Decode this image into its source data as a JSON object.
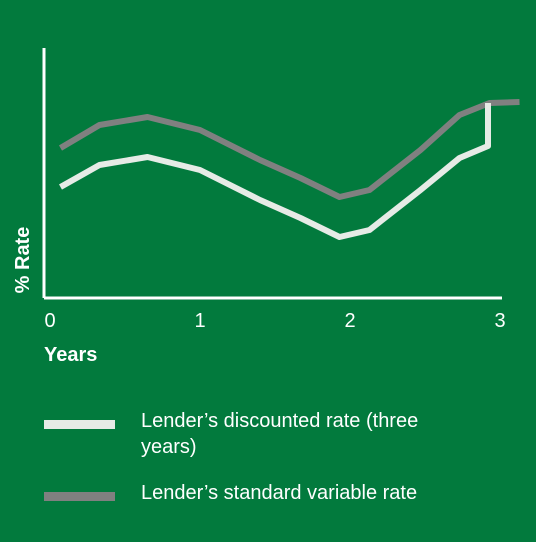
{
  "chart_data": {
    "type": "line",
    "x_label": "Years",
    "y_label": "% Rate",
    "xlim": [
      -0.04,
      3.15
    ],
    "xticks": [
      0,
      1,
      2,
      3
    ],
    "ylim": [
      0,
      10
    ],
    "series": [
      {
        "name": "Lender’s discounted rate (three years)",
        "color": "#e6ebe6",
        "x": [
          0.07,
          0.33,
          0.65,
          1.0,
          1.4,
          1.67,
          1.93,
          2.13,
          2.47,
          2.73,
          2.92,
          2.92
        ],
        "values": [
          4.44,
          5.32,
          5.64,
          5.12,
          3.92,
          3.2,
          2.44,
          2.72,
          4.32,
          5.6,
          6.08,
          7.8
        ]
      },
      {
        "name": "Lender’s standard variable rate",
        "color": "#808080",
        "x": [
          0.07,
          0.33,
          0.65,
          1.0,
          1.4,
          1.67,
          1.93,
          2.13,
          2.47,
          2.73,
          2.93,
          3.13
        ],
        "values": [
          6.0,
          6.92,
          7.24,
          6.72,
          5.52,
          4.8,
          4.04,
          4.32,
          5.92,
          7.32,
          7.8,
          7.84
        ]
      }
    ]
  }
}
